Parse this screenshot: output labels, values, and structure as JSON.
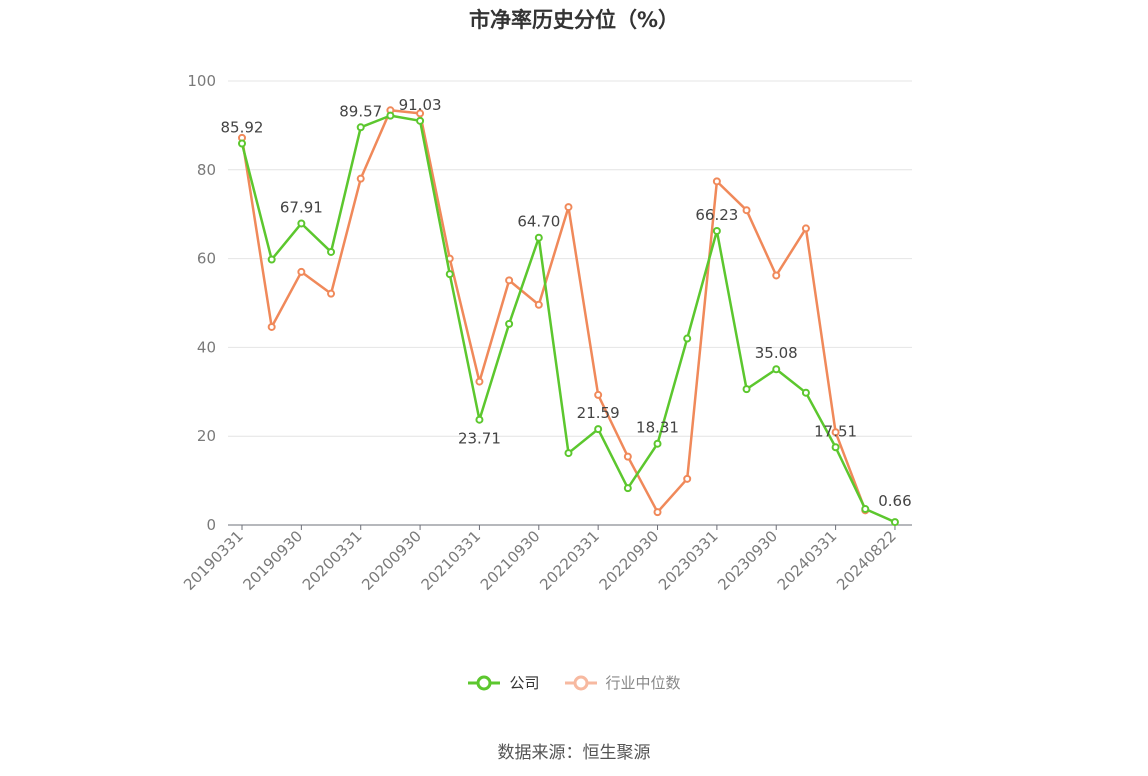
{
  "chart_data": {
    "type": "line",
    "title": "市净率历史分位（%）",
    "ylim": [
      0,
      100
    ],
    "yticks": [
      0,
      20,
      40,
      60,
      80,
      100
    ],
    "grid": true,
    "legend_position": "bottom",
    "x_tick_labels": [
      "20190331",
      "20190930",
      "20200331",
      "20200930",
      "20210331",
      "20210930",
      "20220331",
      "20220930",
      "20230331",
      "20230930",
      "20240331",
      "20240822"
    ],
    "x": [
      "20190331",
      "20190630",
      "20190930",
      "20191231",
      "20200331",
      "20200630",
      "20200930",
      "20201231",
      "20210331",
      "20210630",
      "20210930",
      "20211231",
      "20220331",
      "20220630",
      "20220930",
      "20221231",
      "20230331",
      "20230630",
      "20230930",
      "20231231",
      "20240331",
      "20240630",
      "20240822"
    ],
    "series": [
      {
        "name": "公司",
        "color": "#5cc72e",
        "values": [
          85.92,
          59.8,
          67.91,
          61.5,
          89.57,
          92.2,
          91.03,
          56.5,
          23.71,
          45.3,
          64.7,
          16.2,
          21.59,
          8.3,
          18.31,
          42.0,
          66.23,
          30.6,
          35.08,
          29.8,
          17.51,
          3.6,
          0.66
        ],
        "labels": [
          "85.92",
          "",
          "67.91",
          "",
          "89.57",
          "",
          "91.03",
          "",
          "23.71",
          "",
          "64.70",
          "",
          "21.59",
          "",
          "18.31",
          "",
          "66.23",
          "",
          "35.08",
          "",
          "17.51",
          "",
          "0.66"
        ]
      },
      {
        "name": "行业中位数",
        "color": "#f0895a",
        "values": [
          87.2,
          44.6,
          57.0,
          52.1,
          78.0,
          93.4,
          92.7,
          60.0,
          32.3,
          55.1,
          49.6,
          71.6,
          29.3,
          15.4,
          2.9,
          10.4,
          77.4,
          70.9,
          56.2,
          66.8,
          20.9,
          3.3,
          null
        ]
      }
    ]
  },
  "legend": {
    "company": "公司",
    "industry": "行业中位数"
  },
  "footer": {
    "source": "数据来源：恒生聚源"
  }
}
